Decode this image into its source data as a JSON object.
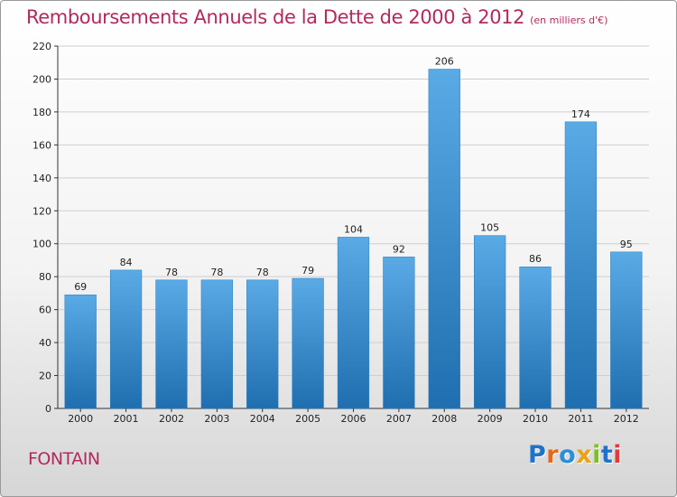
{
  "title": "Remboursements Annuels de la Dette de 2000 à 2012",
  "subtitle": "(en milliers d'€)",
  "commune": "FONTAIN",
  "logo": {
    "text": "Proxiti",
    "letters": [
      "P",
      "r",
      "o",
      "x",
      "i",
      "t",
      "i"
    ],
    "colors": [
      "#1f73c7",
      "#e8681a",
      "#2b8fd6",
      "#e9a21a",
      "#7fbe2a",
      "#1f73c7",
      "#e23b3b"
    ]
  },
  "colors": {
    "title": "#b22a5e",
    "bar_top": "#5aaae6",
    "bar_bottom": "#1f6fb0",
    "grid": "#cfcfcf"
  },
  "chart_data": {
    "type": "bar",
    "title": "Remboursements Annuels de la Dette de 2000 à 2012",
    "xlabel": "",
    "ylabel": "",
    "categories": [
      "2000",
      "2001",
      "2002",
      "2003",
      "2004",
      "2005",
      "2006",
      "2007",
      "2008",
      "2009",
      "2010",
      "2011",
      "2012"
    ],
    "values": [
      69,
      84,
      78,
      78,
      78,
      79,
      104,
      92,
      206,
      105,
      86,
      174,
      95
    ],
    "ylim": [
      0,
      220
    ],
    "yticks": [
      0,
      20,
      40,
      60,
      80,
      100,
      120,
      140,
      160,
      180,
      200,
      220
    ],
    "grid": true
  }
}
